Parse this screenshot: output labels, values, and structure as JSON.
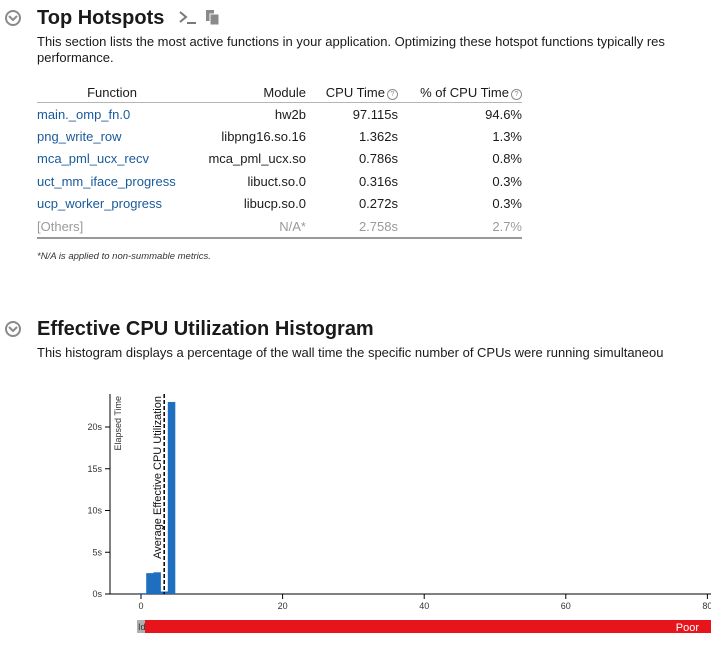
{
  "hotspots": {
    "title": "Top Hotspots",
    "description": "This section lists the most active functions in your application. Optimizing these hotspot functions typically res",
    "description_line2": "performance.",
    "columns": {
      "function": "Function",
      "module": "Module",
      "cpu_time": "CPU Time",
      "pct_cpu_time": "% of CPU Time"
    },
    "rows": [
      {
        "function": "main._omp_fn.0",
        "module": "hw2b",
        "cpu_time": "97.115s",
        "pct": "94.6%"
      },
      {
        "function": "png_write_row",
        "module": "libpng16.so.16",
        "cpu_time": "1.362s",
        "pct": "1.3%"
      },
      {
        "function": "mca_pml_ucx_recv",
        "module": "mca_pml_ucx.so",
        "cpu_time": "0.786s",
        "pct": "0.8%"
      },
      {
        "function": "uct_mm_iface_progress",
        "module": "libuct.so.0",
        "cpu_time": "0.316s",
        "pct": "0.3%"
      },
      {
        "function": "ucp_worker_progress",
        "module": "libucp.so.0",
        "cpu_time": "0.272s",
        "pct": "0.3%"
      }
    ],
    "others": {
      "function": "[Others]",
      "module": "N/A*",
      "cpu_time": "2.758s",
      "pct": "2.7%"
    },
    "footnote": "*N/A is applied to non-summable metrics.",
    "icons": {
      "collapse": "chevron-down-icon",
      "command": "terminal-icon",
      "copy": "copy-icon"
    }
  },
  "histogram": {
    "title": "Effective CPU Utilization Histogram",
    "description": "This histogram displays a percentage of the wall time the specific number of CPUs were running simultaneou",
    "chart_data": {
      "type": "bar",
      "ylabel": "Elapsed Time",
      "y_ticks": [
        "0s",
        "5s",
        "10s",
        "15s",
        "20s"
      ],
      "x_ticks": [
        "0",
        "20",
        "40",
        "60",
        "80"
      ],
      "xlim": [
        -1,
        80
      ],
      "ylim": [
        0,
        24
      ],
      "bars": [
        {
          "x": 0,
          "value": 0.1
        },
        {
          "x": 1,
          "value": 2.5
        },
        {
          "x": 2,
          "value": 2.6
        },
        {
          "x": 3,
          "value": 0.3
        },
        {
          "x": 4,
          "value": 23.0
        }
      ],
      "average_marker": {
        "x": 3.5,
        "label": "Average Effective CPU Utilization"
      },
      "bar_color": "#1f6fc0",
      "legend_bar": {
        "label_left": "Idle",
        "label_right": "Poor",
        "color": "#e8141c",
        "idle_color": "#b0b0b0"
      }
    }
  }
}
